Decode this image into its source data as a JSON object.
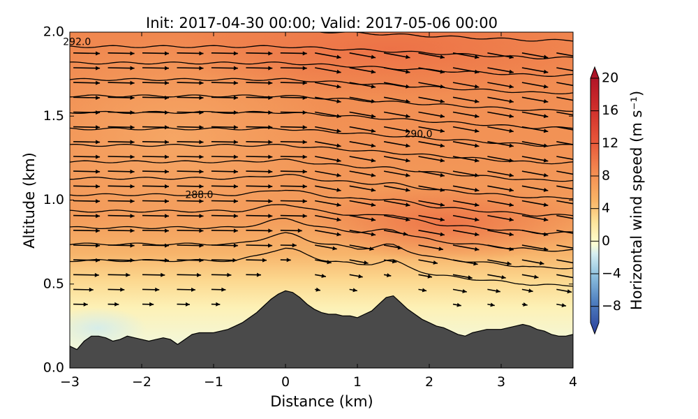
{
  "chart_data": {
    "type": "heatmap",
    "title": "Init: 2017-04-30 00:00; Valid: 2017-05-06 00:00",
    "xlabel": "Distance (km)",
    "ylabel": "Altitude (km)",
    "xlim": [
      -3,
      4
    ],
    "ylim": [
      0.0,
      2.0
    ],
    "x_ticks": [
      -3,
      -2,
      -1,
      0,
      1,
      2,
      3,
      4
    ],
    "x_tick_labels": [
      "−3",
      "−2",
      "−1",
      "0",
      "1",
      "2",
      "3",
      "4"
    ],
    "y_ticks": [
      0.0,
      0.5,
      1.0,
      1.5,
      2.0
    ],
    "y_tick_labels": [
      "0.0",
      "0.5",
      "1.0",
      "1.5",
      "2.0"
    ],
    "colorbar": {
      "label": "Horizontal wind speed (m s⁻¹)",
      "min": -10,
      "max": 20,
      "ticks": [
        -8,
        -4,
        0,
        4,
        8,
        12,
        16,
        20
      ],
      "tick_labels": [
        "−8",
        "−4",
        "0",
        "4",
        "8",
        "12",
        "16",
        "20"
      ],
      "extend": "both"
    },
    "contour_labels": [
      {
        "text": "292.0",
        "x": -2.9,
        "y": 1.94
      },
      {
        "text": "290.0",
        "x": 1.85,
        "y": 1.39
      },
      {
        "text": "288.0",
        "x": -1.2,
        "y": 1.03
      }
    ],
    "terrain": {
      "x": [
        -3.0,
        -2.9,
        -2.8,
        -2.7,
        -2.6,
        -2.5,
        -2.4,
        -2.3,
        -2.2,
        -2.1,
        -2.0,
        -1.9,
        -1.8,
        -1.7,
        -1.6,
        -1.5,
        -1.4,
        -1.3,
        -1.2,
        -1.1,
        -1.0,
        -0.9,
        -0.8,
        -0.7,
        -0.6,
        -0.5,
        -0.4,
        -0.3,
        -0.2,
        -0.1,
        0.0,
        0.1,
        0.2,
        0.3,
        0.4,
        0.5,
        0.6,
        0.7,
        0.8,
        0.9,
        1.0,
        1.1,
        1.2,
        1.3,
        1.4,
        1.5,
        1.6,
        1.7,
        1.8,
        1.9,
        2.0,
        2.1,
        2.2,
        2.3,
        2.4,
        2.5,
        2.6,
        2.7,
        2.8,
        2.9,
        3.0,
        3.1,
        3.2,
        3.3,
        3.4,
        3.5,
        3.6,
        3.7,
        3.8,
        3.9,
        4.0
      ],
      "z": [
        0.13,
        0.11,
        0.16,
        0.19,
        0.19,
        0.18,
        0.16,
        0.17,
        0.19,
        0.18,
        0.17,
        0.16,
        0.17,
        0.18,
        0.17,
        0.14,
        0.17,
        0.2,
        0.21,
        0.21,
        0.21,
        0.22,
        0.23,
        0.25,
        0.27,
        0.3,
        0.33,
        0.37,
        0.41,
        0.44,
        0.46,
        0.45,
        0.42,
        0.38,
        0.35,
        0.33,
        0.32,
        0.32,
        0.31,
        0.31,
        0.3,
        0.32,
        0.34,
        0.38,
        0.42,
        0.43,
        0.39,
        0.35,
        0.32,
        0.29,
        0.27,
        0.25,
        0.24,
        0.22,
        0.2,
        0.19,
        0.21,
        0.22,
        0.23,
        0.23,
        0.23,
        0.24,
        0.25,
        0.26,
        0.25,
        0.23,
        0.22,
        0.2,
        0.19,
        0.19,
        0.2
      ]
    }
  }
}
